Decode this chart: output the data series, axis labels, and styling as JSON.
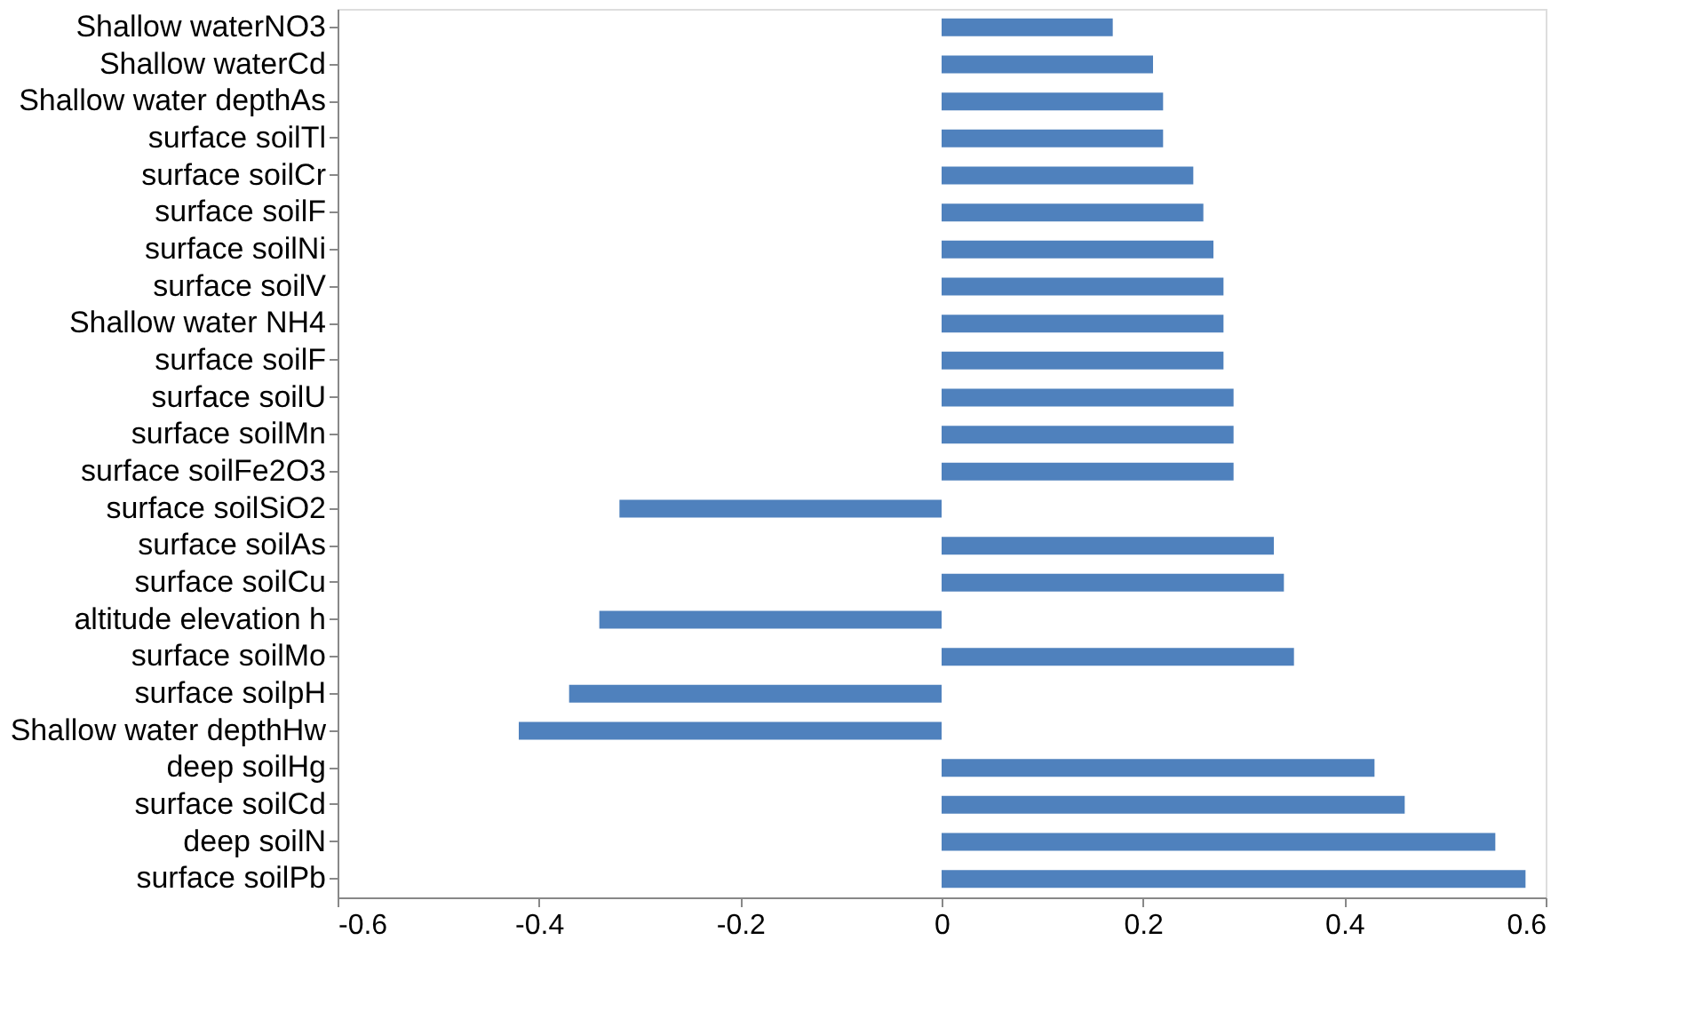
{
  "chart_data": {
    "type": "bar",
    "orientation": "horizontal",
    "categories": [
      "Shallow waterNO3",
      "Shallow waterCd",
      "Shallow water depthAs",
      "surface soilTl",
      "surface soilCr",
      "surface soilF",
      "surface soilNi",
      "surface soilV",
      "Shallow water NH4",
      "surface soilF",
      "surface soilU",
      "surface soilMn",
      "surface soilFe2O3",
      "surface soilSiO2",
      "surface soilAs",
      "surface soilCu",
      "altitude elevation h",
      "surface soilMo",
      "surface soilpH",
      "Shallow water depthHw",
      "deep soilHg",
      "surface soilCd",
      "deep soilN",
      "surface soilPb"
    ],
    "values": [
      0.17,
      0.21,
      0.22,
      0.22,
      0.25,
      0.26,
      0.27,
      0.28,
      0.28,
      0.28,
      0.29,
      0.29,
      0.29,
      -0.32,
      0.33,
      0.34,
      -0.34,
      0.35,
      -0.37,
      -0.42,
      0.43,
      0.46,
      0.55,
      0.58
    ],
    "color": "#4f81bd",
    "xlim": [
      -0.6,
      0.6
    ],
    "xticks": [
      -0.6,
      -0.4,
      -0.2,
      0,
      0.2,
      0.4,
      0.6
    ],
    "grid": false
  }
}
